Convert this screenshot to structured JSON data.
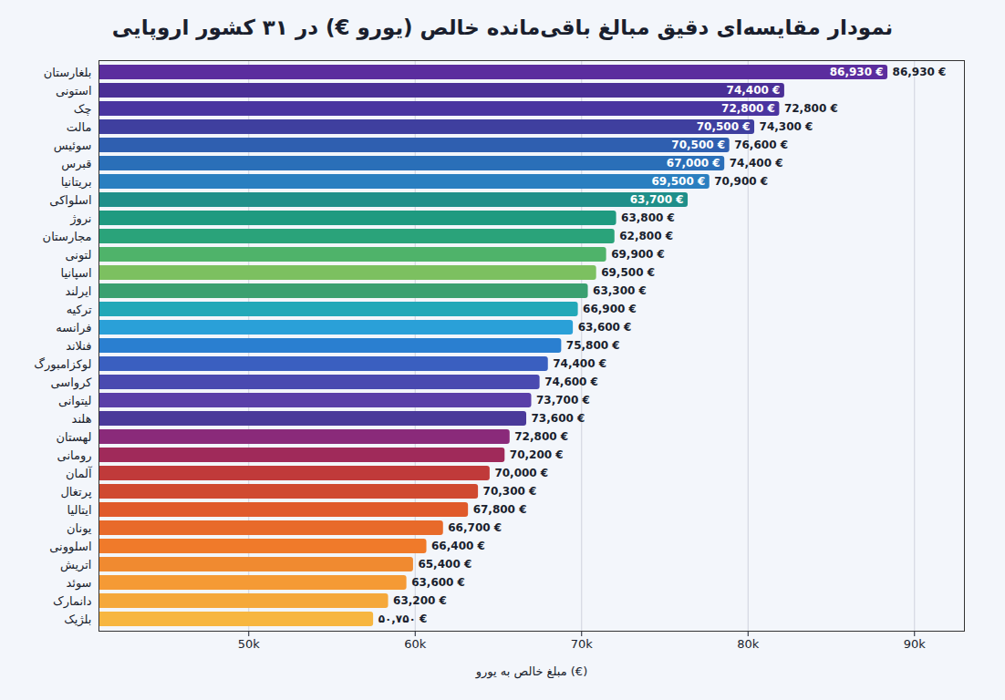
{
  "chart_data": {
    "type": "bar",
    "title": "نمودار مقایسه‌ای دقیق مبالغ باقی‌مانده خالص (یورو €) در ۳۱ کشور اروپایی",
    "xlabel": "مبلغ خالص به یورو (€)",
    "orientation": "horizontal",
    "grid": true,
    "categories": [
      "بلغارستان",
      "استونی",
      "چک",
      "مالت",
      "سوئیس",
      "قبرس",
      "بریتانیا",
      "اسلواکی",
      "نروژ",
      "مجارستان",
      "لتونی",
      "اسپانیا",
      "ایرلند",
      "ترکیه",
      "فرانسه",
      "فنلاند",
      "لوکزامبورگ",
      "کرواسی",
      "لیتوانی",
      "هلند",
      "لهستان",
      "رومانی",
      "آلمان",
      "پرتغال",
      "ایتالیا",
      "یونان",
      "اسلوونی",
      "اتریش",
      "سوئد",
      "دانمارک",
      "بلژیک"
    ],
    "values": [
      88400,
      82200,
      81900,
      80400,
      78900,
      78600,
      77700,
      76400,
      72100,
      72000,
      71500,
      70900,
      70400,
      69800,
      69500,
      68800,
      68000,
      67500,
      67000,
      66700,
      65700,
      65400,
      64500,
      63800,
      63200,
      61700,
      60700,
      59900,
      59500,
      58400,
      57500
    ],
    "colors": [
      "#5b2d9e",
      "#4a2f96",
      "#4a35a0",
      "#3f3f9f",
      "#2f5fb0",
      "#2a6fb8",
      "#2a7fc0",
      "#1f8f8a",
      "#1f9a80",
      "#2aa37a",
      "#4fb36a",
      "#7cc060",
      "#3aa070",
      "#22a8b8",
      "#2aa0d8",
      "#2a7fd0",
      "#3a5fc0",
      "#4a4ab0",
      "#5a3fa8",
      "#4a3a9a",
      "#8a2a7a",
      "#a02a5a",
      "#c03a3a",
      "#d04a30",
      "#e05a2a",
      "#e86a2a",
      "#f07a2a",
      "#f08a30",
      "#f59a35",
      "#f5a83a",
      "#f7b640"
    ],
    "inner_labels": [
      "86,930 €",
      "74,400 €",
      "72,800 €",
      "70,500 €",
      "70,500 €",
      "67,000 €",
      "69,500 €",
      "63,700 €",
      null,
      null,
      null,
      null,
      null,
      null,
      null,
      null,
      null,
      null,
      null,
      null,
      null,
      null,
      null,
      null,
      null,
      null,
      null,
      null,
      null,
      null,
      null
    ],
    "outer_labels": [
      "86,930 €",
      null,
      "72,800 €",
      "74,300 €",
      "76,600 €",
      "74,400 €",
      "70,900 €",
      null,
      "63,800 €",
      "62,800 €",
      "69,900 €",
      "69,500 €",
      "63,300 €",
      "66,900 €",
      "63,600 €",
      "75,800 €",
      "74,400 €",
      "74,600 €",
      "73,700 €",
      "73,600 €",
      "72,800 €",
      "70,200 €",
      "70,000 €",
      "70,300 €",
      "67,800 €",
      "66,700 €",
      "66,400 €",
      "65,400 €",
      "63,600 €",
      "63,200 €",
      "۵۰,۷۵۰ €"
    ],
    "xlim": [
      41000,
      93000
    ],
    "xticks": [
      {
        "value": 50000,
        "label": "50k"
      },
      {
        "value": 60000,
        "label": "60k"
      },
      {
        "value": 70000,
        "label": "70k"
      },
      {
        "value": 80000,
        "label": "80k"
      },
      {
        "value": 90000,
        "label": "90k"
      }
    ]
  }
}
